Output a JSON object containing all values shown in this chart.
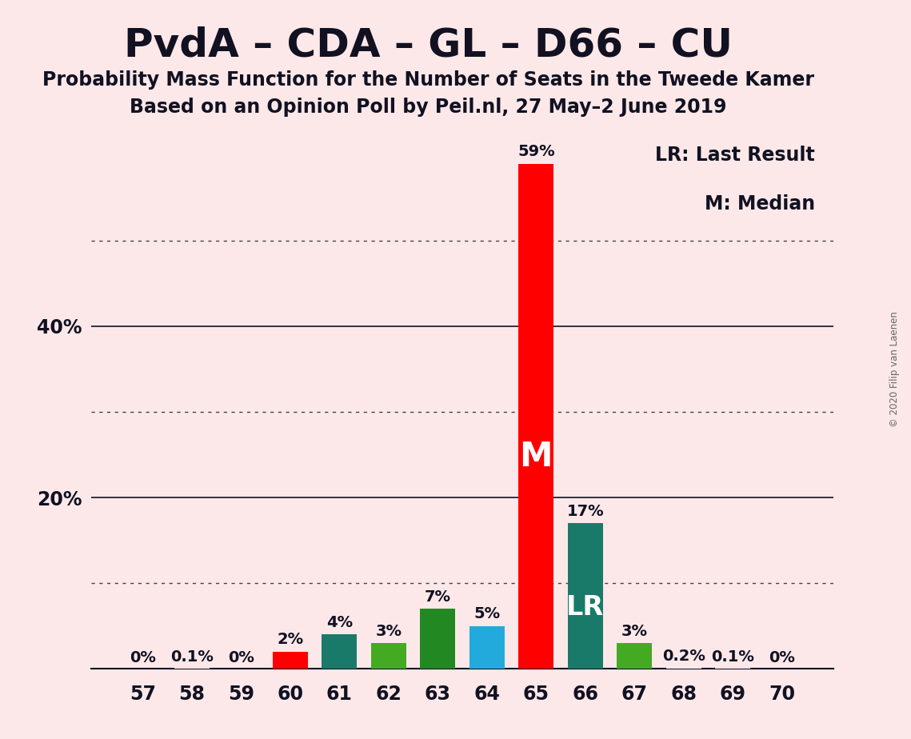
{
  "title": "PvdA – CDA – GL – D66 – CU",
  "subtitle1": "Probability Mass Function for the Number of Seats in the Tweede Kamer",
  "subtitle2": "Based on an Opinion Poll by Peil.nl, 27 May–2 June 2019",
  "copyright": "© 2020 Filip van Laenen",
  "background_color": "#fce8e8",
  "categories": [
    57,
    58,
    59,
    60,
    61,
    62,
    63,
    64,
    65,
    66,
    67,
    68,
    69,
    70
  ],
  "values": [
    0.0,
    0.1,
    0.0,
    2.0,
    4.0,
    3.0,
    7.0,
    5.0,
    59.0,
    17.0,
    3.0,
    0.2,
    0.1,
    0.0
  ],
  "bar_colors": [
    "#fce8e8",
    "#fce8e8",
    "#fce8e8",
    "#ff0000",
    "#1a7a6a",
    "#44aa22",
    "#228822",
    "#22aadd",
    "#ff0000",
    "#1a7a6a",
    "#44aa22",
    "#fce8e8",
    "#fce8e8",
    "#fce8e8"
  ],
  "labels": [
    "0%",
    "0.1%",
    "0%",
    "2%",
    "4%",
    "3%",
    "7%",
    "5%",
    "59%",
    "17%",
    "3%",
    "0.2%",
    "0.1%",
    "0%"
  ],
  "median_bar_idx": 8,
  "lr_bar_idx": 9,
  "median_label": "M",
  "lr_label": "LR",
  "legend_lr": "LR: Last Result",
  "legend_m": "M: Median",
  "ylim": [
    0,
    63
  ],
  "ytick_positions": [
    20,
    40
  ],
  "ytick_labels": [
    "20%",
    "40%"
  ],
  "dotted_lines": [
    10,
    30,
    50
  ],
  "solid_lines": [
    20,
    40
  ],
  "axis_color": "#111122",
  "grid_color": "#444444",
  "bar_width": 0.72,
  "label_fontsize": 14,
  "tick_fontsize": 17,
  "title_fontsize": 36,
  "subtitle_fontsize": 17,
  "legend_fontsize": 17,
  "m_fontsize": 30,
  "lr_fontsize": 24
}
